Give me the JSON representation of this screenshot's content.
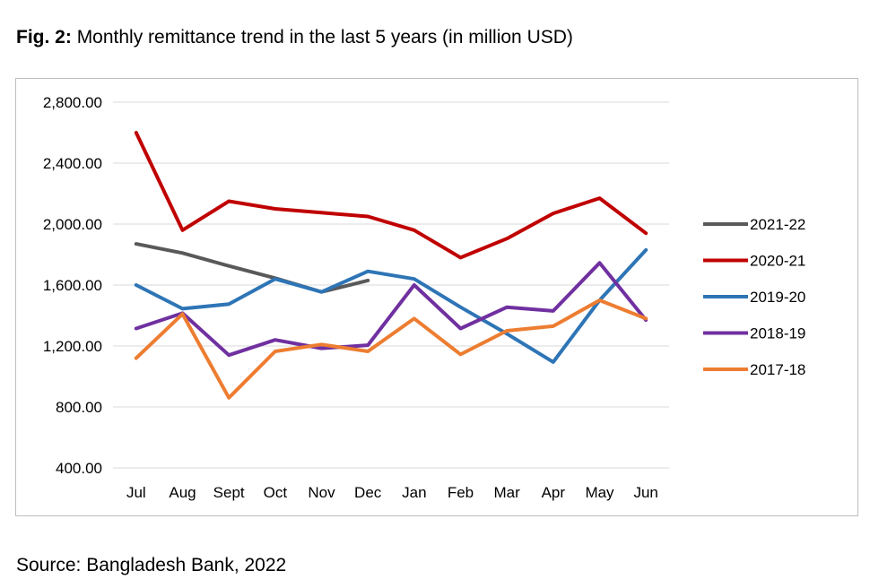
{
  "figure": {
    "label": "Fig. 2:",
    "caption": "Monthly remittance trend in the last 5 years (in million USD)"
  },
  "source": "Source: Bangladesh Bank, 2022",
  "chart_data": {
    "type": "line",
    "title": "",
    "xlabel": "",
    "ylabel": "",
    "categories": [
      "Jul",
      "Aug",
      "Sept",
      "Oct",
      "Nov",
      "Dec",
      "Jan",
      "Feb",
      "Mar",
      "Apr",
      "May",
      "Jun"
    ],
    "ylim": [
      400,
      2800
    ],
    "yticks": [
      400,
      800,
      1200,
      1600,
      2000,
      2400,
      2800
    ],
    "ytick_labels": [
      "400.00",
      "800.00",
      "1,200.00",
      "1,600.00",
      "2,000.00",
      "2,400.00",
      "2,800.00"
    ],
    "grid": true,
    "legend_position": "right",
    "series": [
      {
        "name": "2021-22",
        "color": "#595959",
        "values": [
          1870,
          1810,
          1725,
          1645,
          1555,
          1630,
          null,
          null,
          null,
          null,
          null,
          null
        ]
      },
      {
        "name": "2020-21",
        "color": "#c00000",
        "values": [
          2600,
          1960,
          2150,
          2100,
          2075,
          2050,
          1960,
          1780,
          1905,
          2070,
          2170,
          1940
        ]
      },
      {
        "name": "2019-20",
        "color": "#2e75b6",
        "values": [
          1600,
          1445,
          1475,
          1640,
          1555,
          1690,
          1640,
          1455,
          1280,
          1095,
          1500,
          1830
        ]
      },
      {
        "name": "2018-19",
        "color": "#7030a0",
        "values": [
          1315,
          1415,
          1140,
          1240,
          1185,
          1205,
          1600,
          1315,
          1455,
          1430,
          1745,
          1370
        ]
      },
      {
        "name": "2017-18",
        "color": "#ed7d31",
        "values": [
          1120,
          1410,
          860,
          1165,
          1210,
          1165,
          1380,
          1145,
          1300,
          1330,
          1500,
          1380
        ]
      }
    ]
  }
}
